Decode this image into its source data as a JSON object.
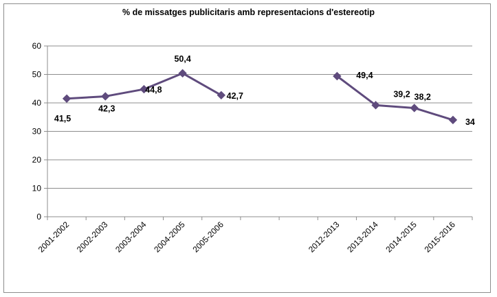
{
  "chart_data": {
    "type": "line",
    "title": "% de missatges publicitaris  amb representacions d'estereotip",
    "xlabel": "",
    "ylabel": "",
    "ylim": [
      0,
      60
    ],
    "yticks": [
      "0",
      "10",
      "20",
      "30",
      "40",
      "50",
      "60"
    ],
    "categories": [
      "2001-2002",
      "2002-2003",
      "2003-2004",
      "2004-2005",
      "2005-2006",
      "",
      "",
      "2012-2013",
      "2013-2014",
      "2014-2015",
      "2015-2016"
    ],
    "series": [
      {
        "values": [
          41.5,
          42.3,
          44.8,
          50.4,
          42.7,
          null,
          null,
          49.4,
          39.2,
          38.2,
          34
        ],
        "labels": [
          "41,5",
          "42,3",
          "44,8",
          "50,4",
          "42,7",
          "",
          "",
          "49,4",
          "39,2",
          "38,2",
          "34"
        ],
        "color": "#5f4b7d"
      }
    ],
    "grid": true,
    "legend": "none"
  }
}
